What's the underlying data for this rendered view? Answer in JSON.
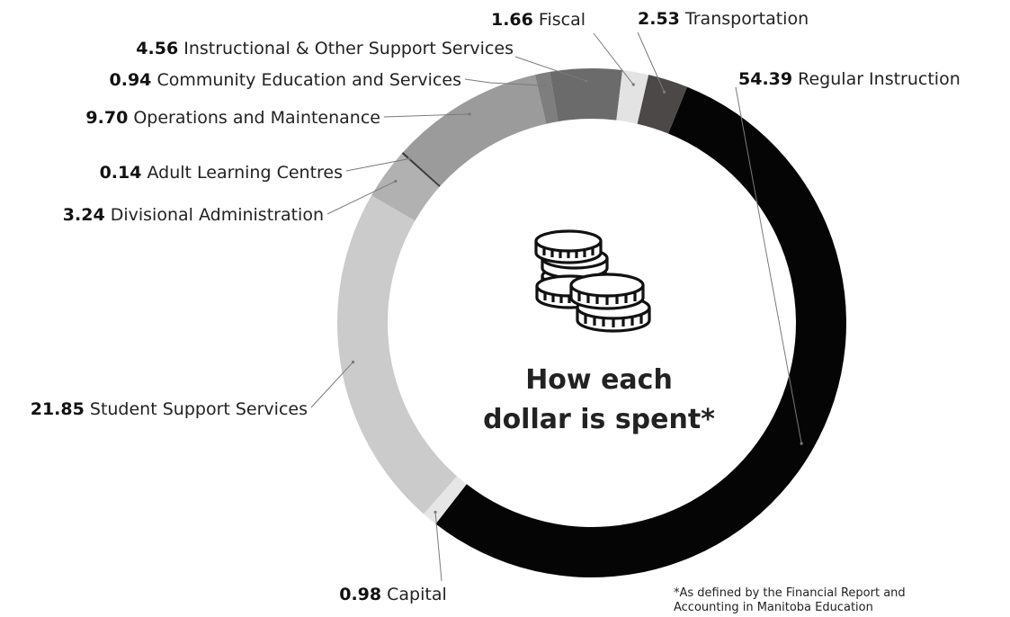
{
  "chart_data": {
    "type": "pie",
    "donut": true,
    "center_title": [
      "How each",
      "dollar is spent*"
    ],
    "slices": [
      {
        "label": "Regular Instruction",
        "value": 54.39,
        "display": "54.39",
        "color": "#050505"
      },
      {
        "label": "Capital",
        "value": 0.98,
        "display": "0.98",
        "color": "#e6e6e6"
      },
      {
        "label": "Student Support Services",
        "value": 21.85,
        "display": "21.85",
        "color": "#cbcbcb"
      },
      {
        "label": "Divisional Administration",
        "value": 3.24,
        "display": "3.24",
        "color": "#b1b1b1"
      },
      {
        "label": "Adult Learning Centres",
        "value": 0.14,
        "display": "0.14",
        "color": "#3d3d3d"
      },
      {
        "label": "Operations and Maintenance",
        "value": 9.7,
        "display": "9.70",
        "color": "#9b9b9b"
      },
      {
        "label": "Community Education and Services",
        "value": 0.94,
        "display": "0.94",
        "color": "#7e7e7e"
      },
      {
        "label": "Instructional & Other Support Services",
        "value": 4.56,
        "display": "4.56",
        "color": "#6b6b6b"
      },
      {
        "label": "Fiscal",
        "value": 1.66,
        "display": "1.66",
        "color": "#e3e3e3"
      },
      {
        "label": "Transportation",
        "value": 2.53,
        "display": "2.53",
        "color": "#4d4848"
      }
    ]
  },
  "icon": "coins-stack-icon",
  "footnote": [
    "*As defined by the Financial Report and",
    "Accounting in Manitoba Education"
  ]
}
